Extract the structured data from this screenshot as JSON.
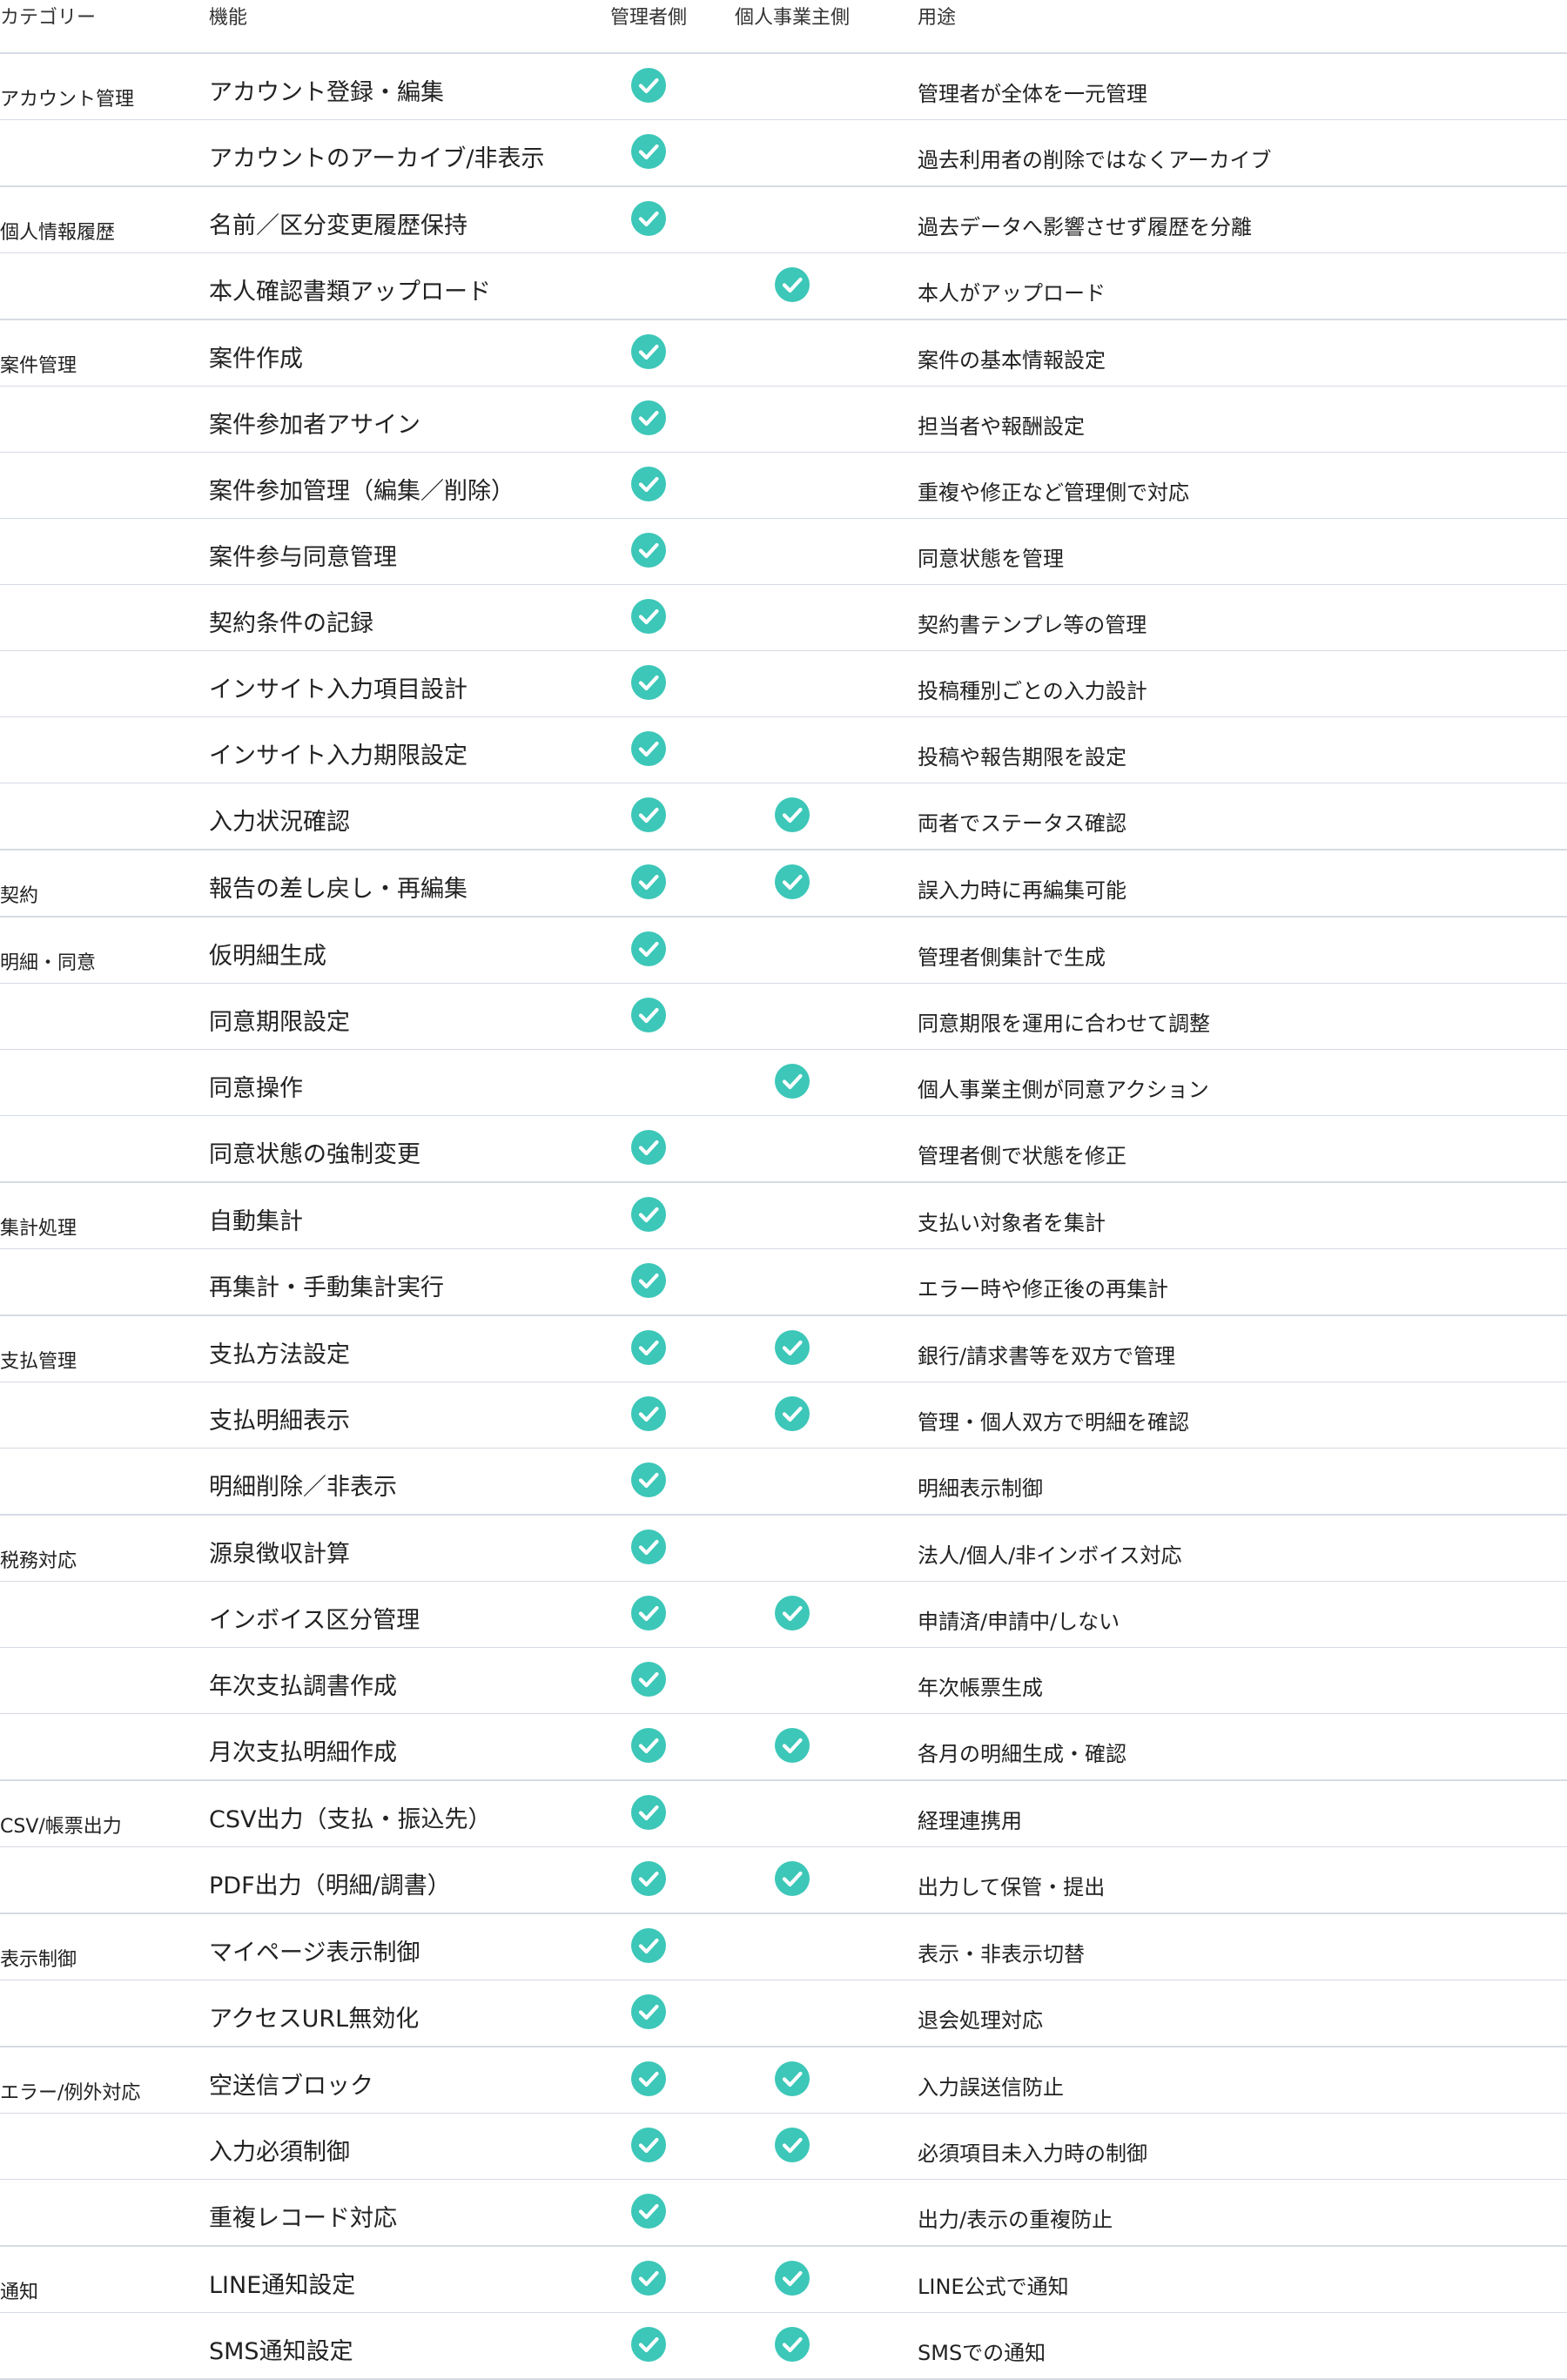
{
  "headers": {
    "category": "カテゴリー",
    "feature": "機能",
    "admin": "管理者側",
    "individual": "個人事業主側",
    "usage": "用途"
  },
  "colors": {
    "check": "#3cc7b8",
    "rule": "#d6dbe3"
  },
  "check_icon": "check-circle-icon",
  "groups": [
    {
      "category": "アカウント管理",
      "rows": [
        {
          "feature": "アカウント登録・編集",
          "admin": true,
          "individual": false,
          "usage": "管理者が全体を一元管理"
        },
        {
          "feature": "アカウントのアーカイブ/非表示",
          "admin": true,
          "individual": false,
          "usage": "過去利用者の削除ではなくアーカイブ"
        }
      ]
    },
    {
      "category": "個人情報履歴",
      "rows": [
        {
          "feature": "名前／区分変更履歴保持",
          "admin": true,
          "individual": false,
          "usage": "過去データへ影響させず履歴を分離"
        },
        {
          "feature": "本人確認書類アップロード",
          "admin": false,
          "individual": true,
          "usage": "本人がアップロード"
        }
      ]
    },
    {
      "category": "案件管理",
      "rows": [
        {
          "feature": "案件作成",
          "admin": true,
          "individual": false,
          "usage": "案件の基本情報設定"
        },
        {
          "feature": "案件参加者アサイン",
          "admin": true,
          "individual": false,
          "usage": "担当者や報酬設定"
        },
        {
          "feature": "案件参加管理（編集／削除）",
          "admin": true,
          "individual": false,
          "usage": "重複や修正など管理側で対応"
        },
        {
          "feature": "案件参与同意管理",
          "admin": true,
          "individual": false,
          "usage": "同意状態を管理"
        },
        {
          "feature": "契約条件の記録",
          "admin": true,
          "individual": false,
          "usage": "契約書テンプレ等の管理"
        },
        {
          "feature": "インサイト入力項目設計",
          "admin": true,
          "individual": false,
          "usage": "投稿種別ごとの入力設計"
        },
        {
          "feature": "インサイト入力期限設定",
          "admin": true,
          "individual": false,
          "usage": "投稿や報告期限を設定"
        },
        {
          "feature": "入力状況確認",
          "admin": true,
          "individual": true,
          "usage": "両者でステータス確認"
        }
      ]
    },
    {
      "category": "契約",
      "rows": [
        {
          "feature": "報告の差し戻し・再編集",
          "admin": true,
          "individual": true,
          "usage": "誤入力時に再編集可能"
        }
      ]
    },
    {
      "category": "明細・同意",
      "rows": [
        {
          "feature": "仮明細生成",
          "admin": true,
          "individual": false,
          "usage": "管理者側集計で生成"
        },
        {
          "feature": "同意期限設定",
          "admin": true,
          "individual": false,
          "usage": "同意期限を運用に合わせて調整"
        },
        {
          "feature": "同意操作",
          "admin": false,
          "individual": true,
          "usage": "個人事業主側が同意アクション"
        },
        {
          "feature": "同意状態の強制変更",
          "admin": true,
          "individual": false,
          "usage": "管理者側で状態を修正"
        }
      ]
    },
    {
      "category": "集計処理",
      "rows": [
        {
          "feature": "自動集計",
          "admin": true,
          "individual": false,
          "usage": "支払い対象者を集計"
        },
        {
          "feature": "再集計・手動集計実行",
          "admin": true,
          "individual": false,
          "usage": "エラー時や修正後の再集計"
        }
      ]
    },
    {
      "category": "支払管理",
      "rows": [
        {
          "feature": "支払方法設定",
          "admin": true,
          "individual": true,
          "usage": "銀行/請求書等を双方で管理"
        },
        {
          "feature": "支払明細表示",
          "admin": true,
          "individual": true,
          "usage": "管理・個人双方で明細を確認"
        },
        {
          "feature": "明細削除／非表示",
          "admin": true,
          "individual": false,
          "usage": "明細表示制御"
        }
      ]
    },
    {
      "category": "税務対応",
      "rows": [
        {
          "feature": "源泉徴収計算",
          "admin": true,
          "individual": false,
          "usage": "法人/個人/非インボイス対応"
        },
        {
          "feature": "インボイス区分管理",
          "admin": true,
          "individual": true,
          "usage": "申請済/申請中/しない"
        },
        {
          "feature": "年次支払調書作成",
          "admin": true,
          "individual": false,
          "usage": "年次帳票生成"
        },
        {
          "feature": "月次支払明細作成",
          "admin": true,
          "individual": true,
          "usage": "各月の明細生成・確認"
        }
      ]
    },
    {
      "category": "CSV/帳票出力",
      "rows": [
        {
          "feature": "CSV出力（支払・振込先）",
          "admin": true,
          "individual": false,
          "usage": "経理連携用"
        },
        {
          "feature": "PDF出力（明細/調書）",
          "admin": true,
          "individual": true,
          "usage": "出力して保管・提出"
        }
      ]
    },
    {
      "category": "表示制御",
      "rows": [
        {
          "feature": "マイページ表示制御",
          "admin": true,
          "individual": false,
          "usage": "表示・非表示切替"
        },
        {
          "feature": "アクセスURL無効化",
          "admin": true,
          "individual": false,
          "usage": "退会処理対応"
        }
      ]
    },
    {
      "category": "エラー/例外対応",
      "rows": [
        {
          "feature": "空送信ブロック",
          "admin": true,
          "individual": true,
          "usage": "入力誤送信防止"
        },
        {
          "feature": "入力必須制御",
          "admin": true,
          "individual": true,
          "usage": "必須項目未入力時の制御"
        },
        {
          "feature": "重複レコード対応",
          "admin": true,
          "individual": false,
          "usage": "出力/表示の重複防止"
        }
      ]
    },
    {
      "category": "通知",
      "rows": [
        {
          "feature": "LINE通知設定",
          "admin": true,
          "individual": true,
          "usage": "LINE公式で通知"
        },
        {
          "feature": "SMS通知設定",
          "admin": true,
          "individual": true,
          "usage": "SMSでの通知"
        }
      ]
    }
  ]
}
